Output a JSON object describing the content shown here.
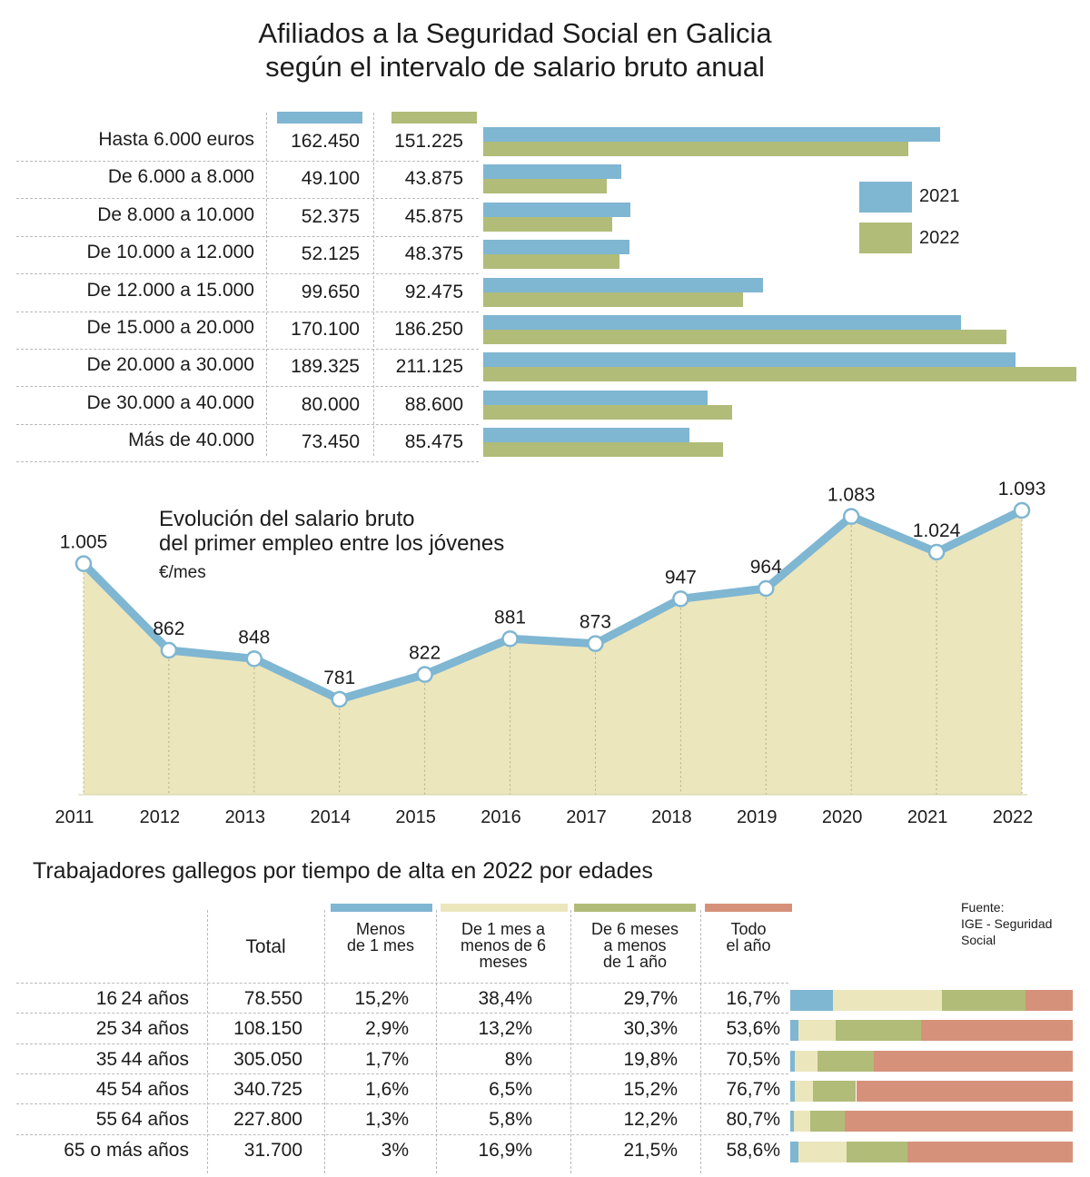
{
  "title": {
    "line1": "Afiliados a la Seguridad Social en Galicia",
    "line2": "según el intervalo de salario bruto anual"
  },
  "colors": {
    "blue": "#7fb6d2",
    "green": "#b0bc78",
    "cream": "#ece6bd",
    "salmon": "#d6917a",
    "line": "#7fb6d2",
    "area": "#ece6bd"
  },
  "chart_data": [
    {
      "type": "bar",
      "orientation": "horizontal",
      "categories": [
        "Hasta 6.000 euros",
        "De 6.000 a 8.000",
        "De 8.000 a 10.000",
        "De 10.000 a 12.000",
        "De 12.000 a 15.000",
        "De 15.000 a 20.000",
        "De 20.000 a 30.000",
        "De 30.000 a 40.000",
        "Más de 40.000"
      ],
      "series": [
        {
          "name": "2021",
          "values": [
            162450,
            49100,
            52375,
            52125,
            99650,
            170100,
            189325,
            80000,
            73450
          ],
          "labels": [
            "162.450",
            "49.100",
            "52.375",
            "52.125",
            "99.650",
            "170.100",
            "189.325",
            "80.000",
            "73.450"
          ]
        },
        {
          "name": "2022",
          "values": [
            151225,
            43875,
            45875,
            48375,
            92475,
            186250,
            211125,
            88600,
            85475
          ],
          "labels": [
            "151.225",
            "43.875",
            "45.875",
            "48.375",
            "92.475",
            "186.250",
            "211.125",
            "88.600",
            "85.475"
          ]
        }
      ],
      "legend": "right",
      "legend_entries": [
        "2021",
        "2022"
      ]
    },
    {
      "type": "area",
      "title_line1": "Evolución del salario bruto",
      "title_line2": "del primer empleo entre los jóvenes",
      "unit": "€/mes",
      "x": [
        "2011",
        "2012",
        "2013",
        "2014",
        "2015",
        "2016",
        "2017",
        "2018",
        "2019",
        "2020",
        "2021",
        "2022"
      ],
      "values": [
        1005,
        862,
        848,
        781,
        822,
        881,
        873,
        947,
        964,
        1083,
        1024,
        1093
      ],
      "labels": [
        "1.005",
        "862",
        "848",
        "781",
        "822",
        "881",
        "873",
        "947",
        "964",
        "1.083",
        "1.024",
        "1.093"
      ]
    },
    {
      "type": "bar",
      "stacked": true,
      "normalized": true,
      "title": "Trabajadores gallegos por tiempo de alta en 2022 por edades",
      "total_header": "Total",
      "headers": [
        {
          "lines": [
            "Menos",
            "de 1 mes"
          ]
        },
        {
          "lines": [
            "De 1 mes a",
            "menos de 6",
            "meses"
          ]
        },
        {
          "lines": [
            "De 6 meses",
            "a menos",
            "de 1 año"
          ]
        },
        {
          "lines": [
            "Todo",
            "el año"
          ]
        }
      ],
      "rows": [
        {
          "age": "16 24 años",
          "total": "78.550",
          "pct": [
            "15,2%",
            "38,4%",
            "29,7%",
            "16,7%"
          ],
          "values": [
            15.2,
            38.4,
            29.7,
            16.7
          ]
        },
        {
          "age": "25 34 años",
          "total": "108.150",
          "pct": [
            "2,9%",
            "13,2%",
            "30,3%",
            "53,6%"
          ],
          "values": [
            2.9,
            13.2,
            30.3,
            53.6
          ]
        },
        {
          "age": "35 44 años",
          "total": "305.050",
          "pct": [
            "1,7%",
            "8%",
            "19,8%",
            "70,5%"
          ],
          "values": [
            1.7,
            8,
            19.8,
            70.5
          ]
        },
        {
          "age": "45 54 años",
          "total": "340.725",
          "pct": [
            "1,6%",
            "6,5%",
            "15,2%",
            "76,7%"
          ],
          "values": [
            1.6,
            6.5,
            15.2,
            76.7
          ]
        },
        {
          "age": "55 64 años",
          "total": "227.800",
          "pct": [
            "1,3%",
            "5,8%",
            "12,2%",
            "80,7%"
          ],
          "values": [
            1.3,
            5.8,
            12.2,
            80.7
          ]
        },
        {
          "age": "65 o más años",
          "total": "31.700",
          "pct": [
            "3%",
            "16,9%",
            "21,5%",
            "58,6%"
          ],
          "values": [
            3,
            16.9,
            21.5,
            58.6
          ]
        }
      ]
    }
  ],
  "source": {
    "line1": "Fuente:",
    "line2": "IGE - Seguridad",
    "line3": "Social"
  }
}
